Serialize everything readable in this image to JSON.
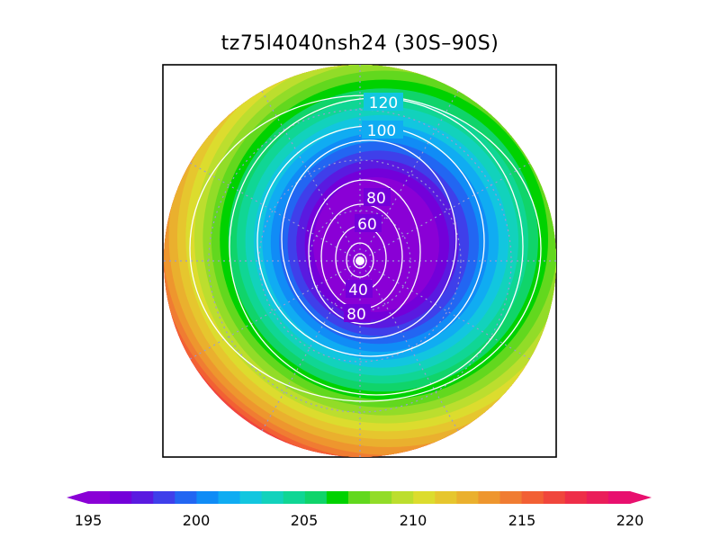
{
  "title": "tz75l4040nsh24 (30S–90S)",
  "region": "30S–90S",
  "contour_labels": [
    "120",
    "100",
    "80",
    "60",
    "40",
    "80"
  ],
  "colorbar": {
    "tick_labels": [
      "195",
      "200",
      "205",
      "210",
      "215",
      "220"
    ],
    "min": 195,
    "max": 220,
    "step": 1,
    "colors": [
      "#8a00d6",
      "#7300d9",
      "#5a1ae0",
      "#3f3fea",
      "#2266f2",
      "#108cf6",
      "#10acf2",
      "#12c6df",
      "#12d2bc",
      "#10d694",
      "#10d46a",
      "#00d200",
      "#62d81e",
      "#92dc28",
      "#bcde2e",
      "#dcdc2e",
      "#e6c62e",
      "#eab02e",
      "#ee962e",
      "#f07c32",
      "#f26034",
      "#f0463c",
      "#ee2e48",
      "#ea1e5a",
      "#e8106e"
    ]
  },
  "map": {
    "projection": "south polar stereographic",
    "field_range_inner": 195,
    "field_range_outer": 220
  }
}
